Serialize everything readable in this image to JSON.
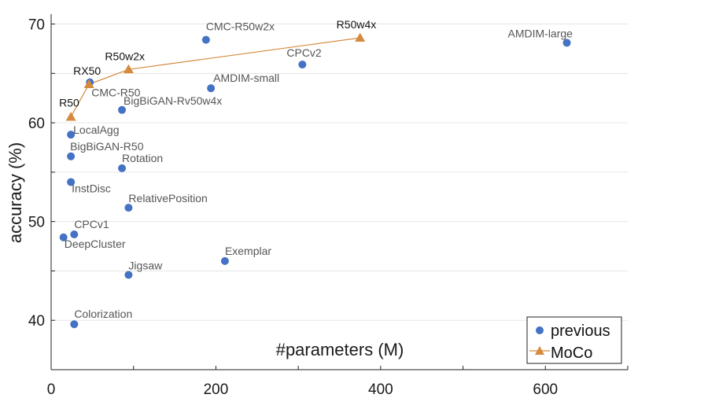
{
  "chart_data": {
    "type": "scatter",
    "xlabel": "#parameters (M)",
    "ylabel": "accuracy (%)",
    "xlim": [
      0,
      700
    ],
    "ylim": [
      35,
      71
    ],
    "xticks": [
      0,
      200,
      400,
      600
    ],
    "yticks": [
      40,
      50,
      60,
      70
    ],
    "grid": "horizontal",
    "legend": "bottom-right",
    "colors": {
      "previous": "#4472C4",
      "MoCo": "#D58A3E"
    },
    "series": [
      {
        "name": "previous",
        "marker": "circle",
        "points": [
          {
            "label": "CMC-R50w2x",
            "x": 188,
            "y": 68.4
          },
          {
            "label": "AMDIM-large",
            "x": 626,
            "y": 68.1
          },
          {
            "label": "CPCv2",
            "x": 305,
            "y": 65.9
          },
          {
            "label": "CMC-R50",
            "x": 47,
            "y": 64.1
          },
          {
            "label": "AMDIM-small",
            "x": 194,
            "y": 63.5
          },
          {
            "label": "BigBiGAN-Rv50w4x",
            "x": 86,
            "y": 61.3
          },
          {
            "label": "LocalAgg",
            "x": 24,
            "y": 58.8
          },
          {
            "label": "BigBiGAN-R50",
            "x": 24,
            "y": 56.6
          },
          {
            "label": "Rotation",
            "x": 86,
            "y": 55.4
          },
          {
            "label": "InstDisc",
            "x": 24,
            "y": 54.0
          },
          {
            "label": "RelativePosition",
            "x": 94,
            "y": 51.4
          },
          {
            "label": "CPCv1",
            "x": 28,
            "y": 48.7
          },
          {
            "label": "DeepCluster",
            "x": 15,
            "y": 48.4
          },
          {
            "label": "Exemplar",
            "x": 211,
            "y": 46.0
          },
          {
            "label": "Jigsaw",
            "x": 94,
            "y": 44.6
          },
          {
            "label": "Colorization",
            "x": 28,
            "y": 39.6
          }
        ]
      },
      {
        "name": "MoCo",
        "marker": "triangle",
        "connected": true,
        "points": [
          {
            "label": "R50",
            "x": 24,
            "y": 60.6
          },
          {
            "label": "RX50",
            "x": 46,
            "y": 63.9
          },
          {
            "label": "R50w2x",
            "x": 94,
            "y": 65.4
          },
          {
            "label": "R50w4x",
            "x": 375,
            "y": 68.6
          }
        ]
      }
    ]
  }
}
